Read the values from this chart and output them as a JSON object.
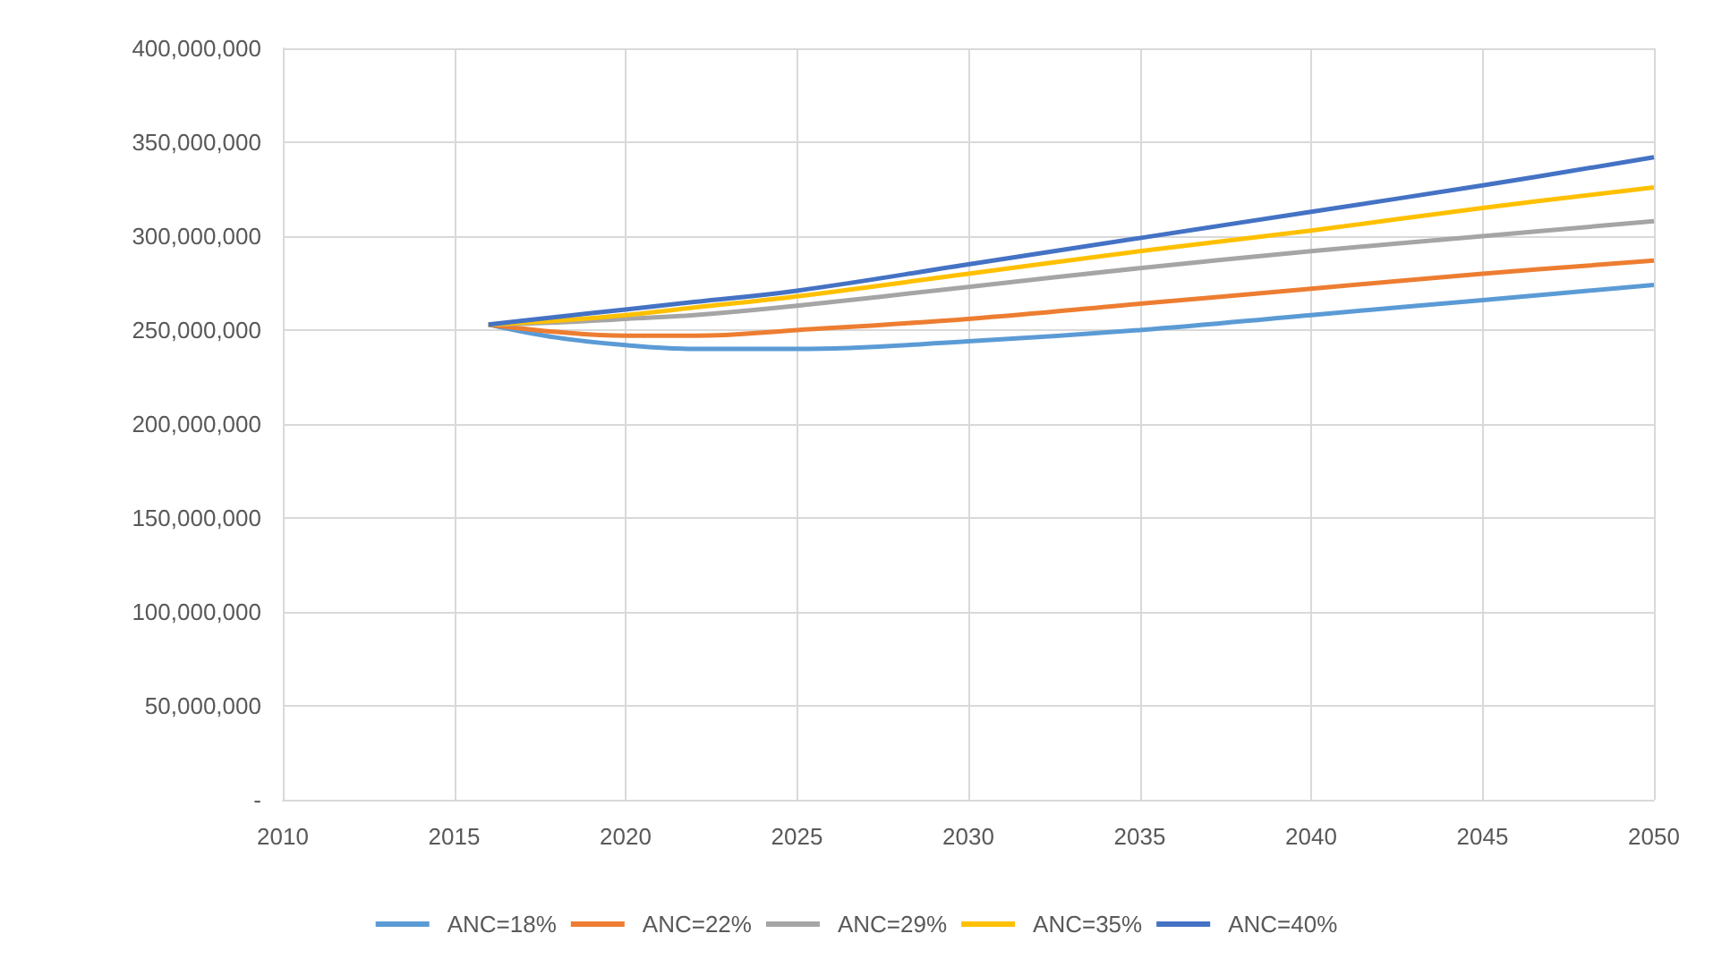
{
  "chart_data": {
    "type": "line",
    "x": [
      2016,
      2018,
      2020,
      2022,
      2025,
      2030,
      2035,
      2040,
      2045,
      2050
    ],
    "series": [
      {
        "name": "ANC=18%",
        "color": "#5b9bd5",
        "values": [
          253000000,
          246000000,
          242000000,
          240000000,
          240000000,
          244000000,
          250000000,
          258000000,
          266000000,
          274000000
        ]
      },
      {
        "name": "ANC=22%",
        "color": "#ed7d31",
        "values": [
          253000000,
          249000000,
          247000000,
          247000000,
          250000000,
          256000000,
          264000000,
          272000000,
          280000000,
          287000000
        ]
      },
      {
        "name": "ANC=29%",
        "color": "#a5a5a5",
        "values": [
          253000000,
          254000000,
          256000000,
          258000000,
          263000000,
          273000000,
          283000000,
          292000000,
          300000000,
          308000000
        ]
      },
      {
        "name": "ANC=35%",
        "color": "#ffc000",
        "values": [
          253000000,
          255000000,
          258000000,
          262000000,
          268000000,
          280000000,
          292000000,
          303000000,
          315000000,
          326000000
        ]
      },
      {
        "name": "ANC=40%",
        "color": "#4472c4",
        "values": [
          253000000,
          257000000,
          261000000,
          265000000,
          271000000,
          285000000,
          299000000,
          313000000,
          327000000,
          342000000
        ]
      }
    ],
    "xlim": [
      2010,
      2050
    ],
    "xticks": [
      2010,
      2015,
      2020,
      2025,
      2030,
      2035,
      2040,
      2045,
      2050
    ],
    "ylim": [
      0,
      400000000
    ],
    "yticks": [
      {
        "value": 0,
        "label": "-"
      },
      {
        "value": 50000000,
        "label": "50,000,000"
      },
      {
        "value": 100000000,
        "label": "100,000,000"
      },
      {
        "value": 150000000,
        "label": "150,000,000"
      },
      {
        "value": 200000000,
        "label": "200,000,000"
      },
      {
        "value": 250000000,
        "label": "250,000,000"
      },
      {
        "value": 300000000,
        "label": "300,000,000"
      },
      {
        "value": 350000000,
        "label": "350,000,000"
      },
      {
        "value": 400000000,
        "label": "400,000,000"
      }
    ],
    "grid": true,
    "legend": "bottom",
    "marker": "none",
    "line_style": "solid"
  }
}
